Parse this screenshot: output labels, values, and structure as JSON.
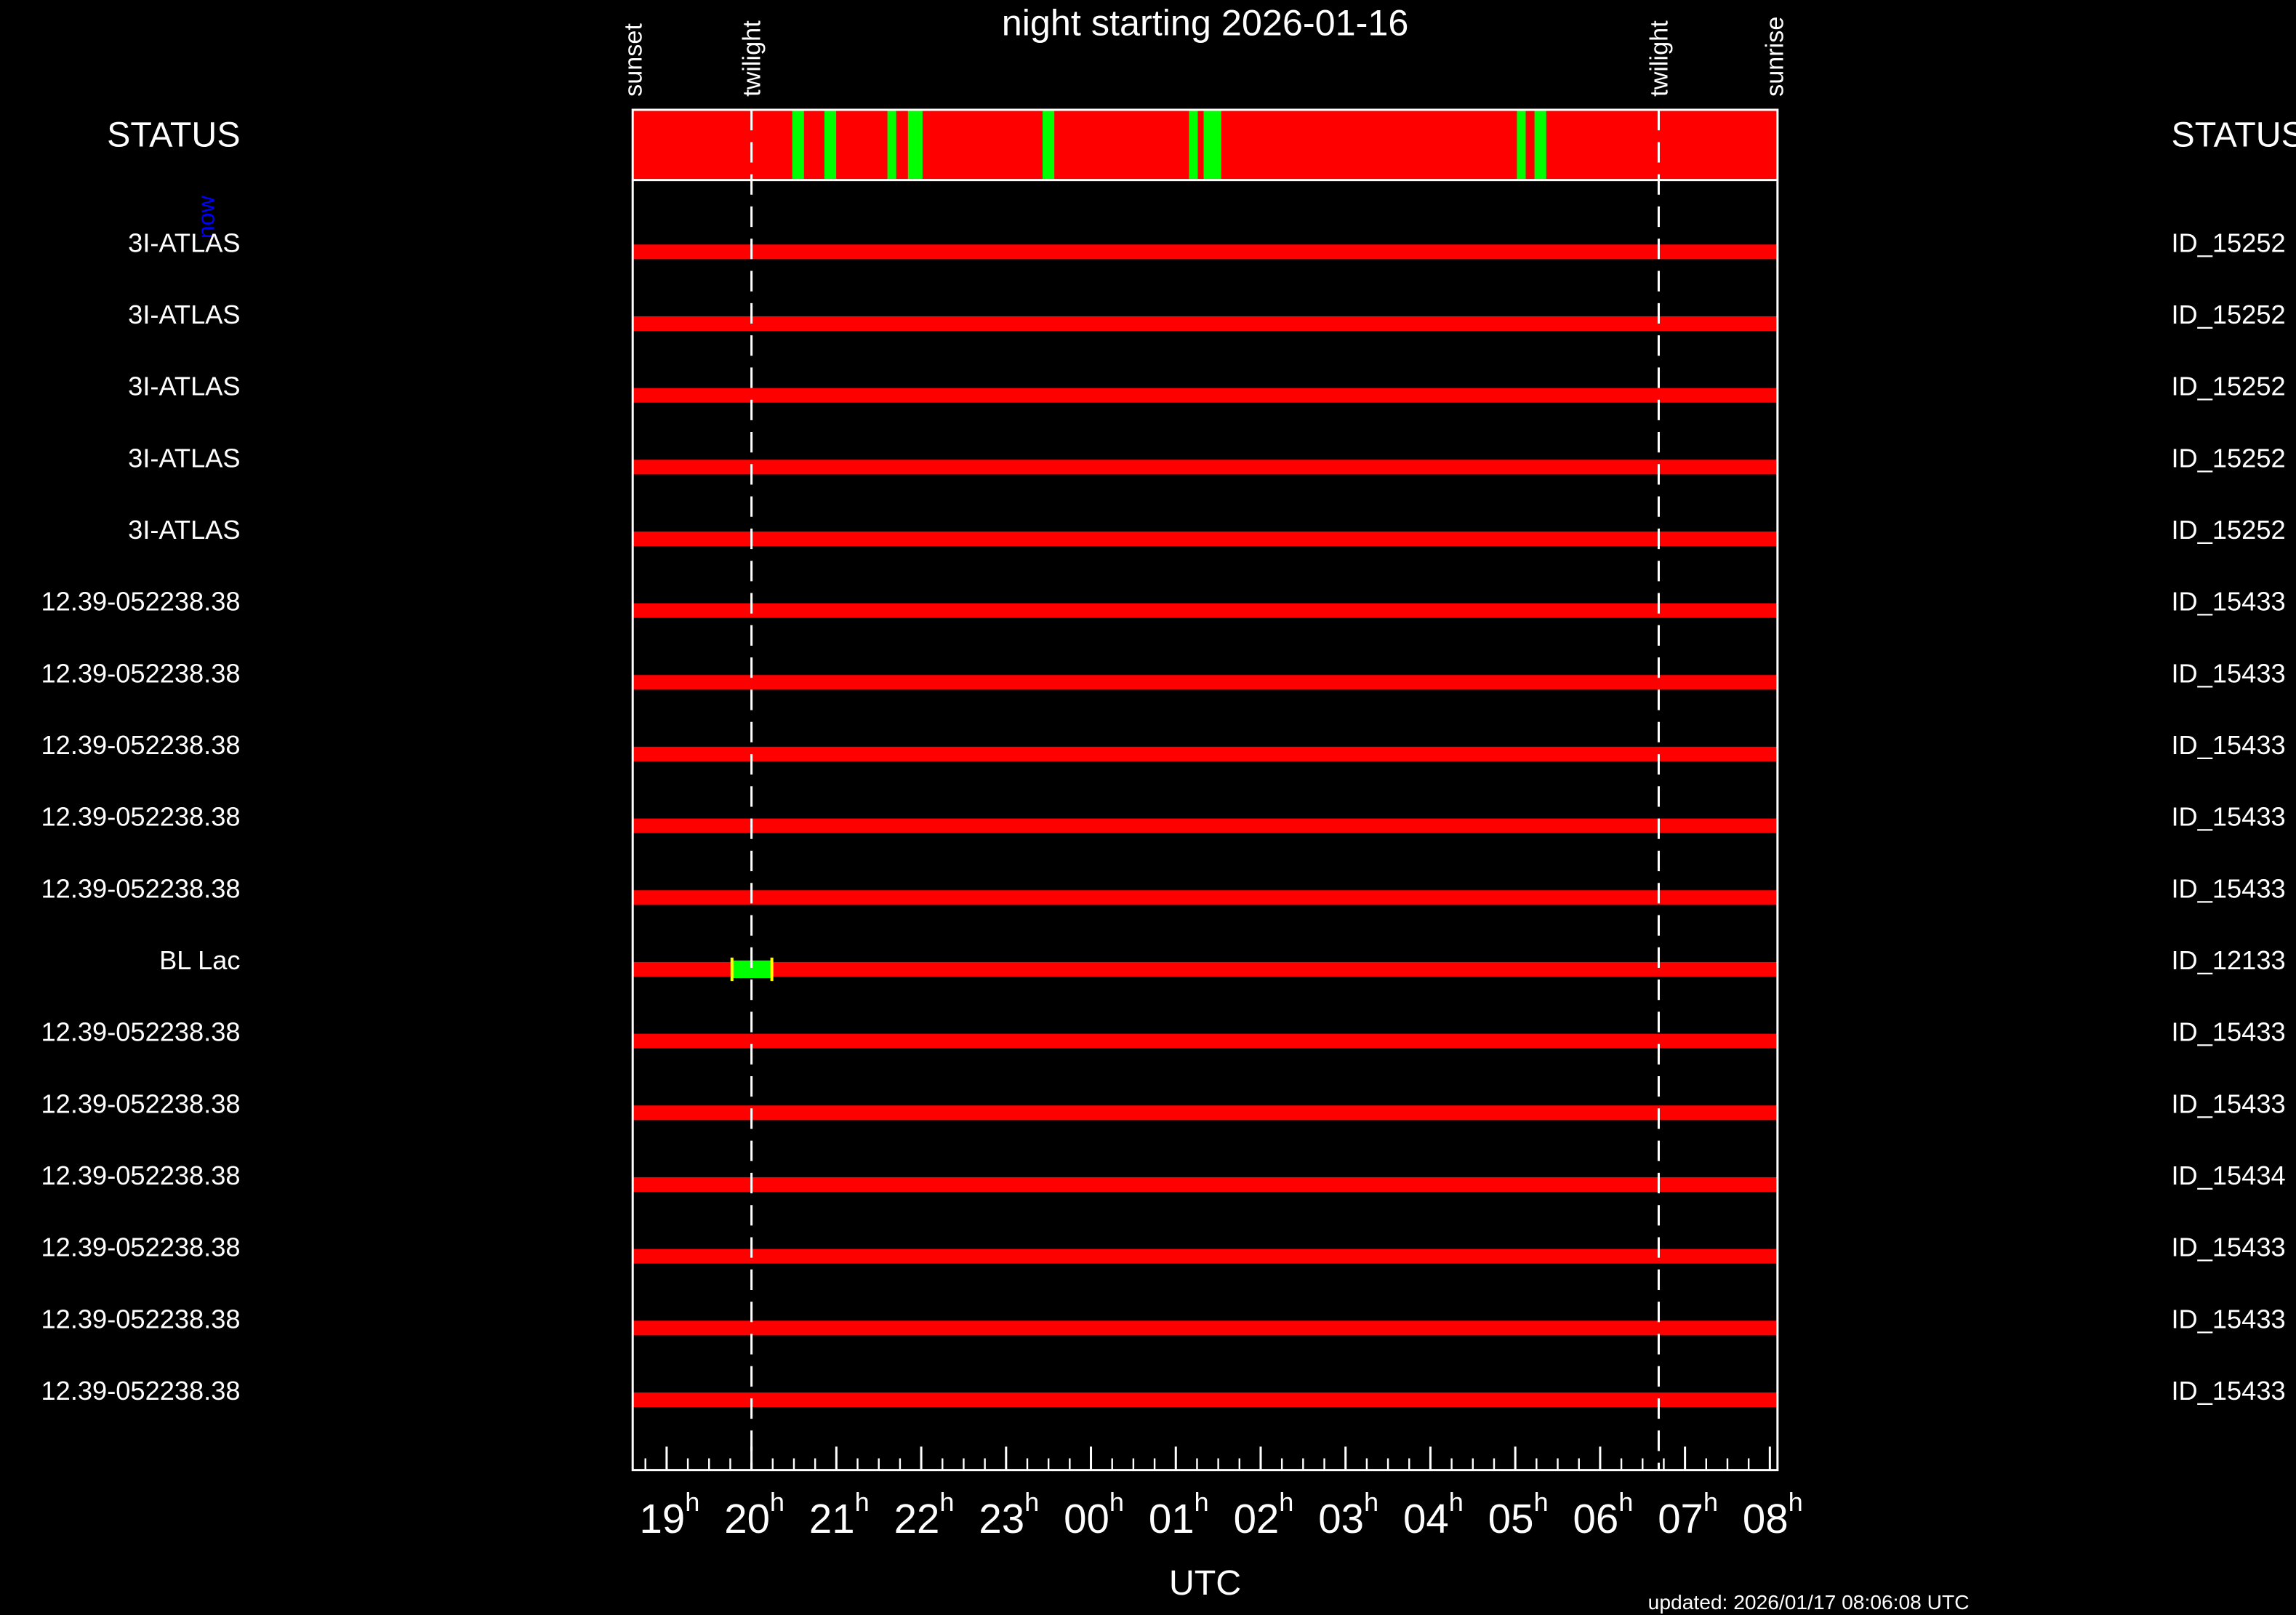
{
  "chart_data": {
    "type": "timeline",
    "title": "night starting 2026-01-16",
    "xlabel": "UTC",
    "status_label": "STATUS",
    "now_label": "now",
    "updated": "updated: 2026/01/17 08:06:08 UTC",
    "xlim": [
      18.6,
      32.09
    ],
    "xticks": [
      19,
      20,
      21,
      22,
      23,
      {
        "value": 24,
        "label": "00"
      },
      {
        "value": 25,
        "label": "01"
      },
      {
        "value": 26,
        "label": "02"
      },
      {
        "value": 27,
        "label": "03"
      },
      {
        "value": 28,
        "label": "04"
      },
      {
        "value": 29,
        "label": "05"
      },
      {
        "value": 30,
        "label": "06"
      },
      {
        "value": 31,
        "label": "07"
      },
      {
        "value": 32,
        "label": "08"
      }
    ],
    "xtick_suffix": "h",
    "events": [
      {
        "label": "sunset",
        "x": 18.6,
        "dashed": false
      },
      {
        "label": "twilight",
        "x": 20.0,
        "dashed": true
      },
      {
        "label": "twilight",
        "x": 30.69,
        "dashed": true
      },
      {
        "label": "sunrise",
        "x": 32.05,
        "dashed": false
      }
    ],
    "status_color": "#ff0000",
    "row_color": "#ff0000",
    "rows": [
      {
        "name": "3I-ATLAS",
        "id": "ID_15252",
        "blocks": []
      },
      {
        "name": "3I-ATLAS",
        "id": "ID_15252",
        "blocks": []
      },
      {
        "name": "3I-ATLAS",
        "id": "ID_15252",
        "blocks": []
      },
      {
        "name": "3I-ATLAS",
        "id": "ID_15252",
        "blocks": []
      },
      {
        "name": "3I-ATLAS",
        "id": "ID_15252",
        "blocks": []
      },
      {
        "name": "12.39-052238.38",
        "id": "ID_15433",
        "blocks": []
      },
      {
        "name": "12.39-052238.38",
        "id": "ID_15433",
        "blocks": []
      },
      {
        "name": "12.39-052238.38",
        "id": "ID_15433",
        "blocks": []
      },
      {
        "name": "12.39-052238.38",
        "id": "ID_15433",
        "blocks": []
      },
      {
        "name": "12.39-052238.38",
        "id": "ID_15433",
        "blocks": []
      },
      {
        "name": "BL Lac",
        "id": "ID_12133",
        "blocks": [
          {
            "start": 19.77,
            "end": 20.24,
            "color": "#00ff00"
          }
        ]
      },
      {
        "name": "12.39-052238.38",
        "id": "ID_15433",
        "blocks": []
      },
      {
        "name": "12.39-052238.38",
        "id": "ID_15433",
        "blocks": []
      },
      {
        "name": "12.39-052238.38",
        "id": "ID_15434",
        "blocks": []
      },
      {
        "name": "12.39-052238.38",
        "id": "ID_15433",
        "blocks": []
      },
      {
        "name": "12.39-052238.38",
        "id": "ID_15433",
        "blocks": []
      },
      {
        "name": "12.39-052238.38",
        "id": "ID_15433",
        "blocks": []
      }
    ]
  }
}
